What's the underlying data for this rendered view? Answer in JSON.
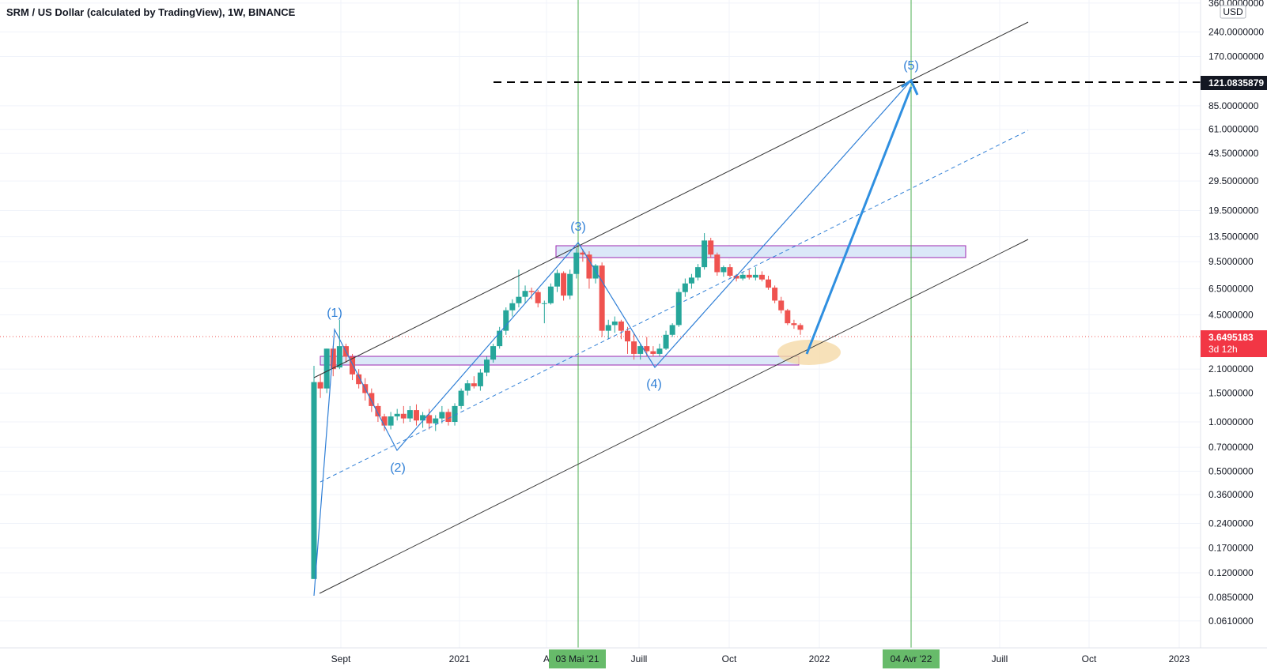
{
  "window": {
    "title": "SRM / US Dollar (calculated by TradingView), 1W, BINANCE"
  },
  "currency_badge": "USD",
  "price_axis": {
    "labels": [
      "360.0000000",
      "240.0000000",
      "170.0000000",
      "85.0000000",
      "61.0000000",
      "43.5000000",
      "29.5000000",
      "19.5000000",
      "13.5000000",
      "9.5000000",
      "6.5000000",
      "4.5000000",
      "2.1000000",
      "1.5000000",
      "1.0000000",
      "0.7000000",
      "0.5000000",
      "0.3600000",
      "0.2400000",
      "0.1700000",
      "0.1200000",
      "0.0850000",
      "0.0610000"
    ],
    "target_price": "121.0835879",
    "current_price": "3.6495183",
    "countdown": "3d 12h"
  },
  "time_axis": {
    "labels": [
      "Sept",
      "2021",
      "A",
      "Juill",
      "Oct",
      "2022",
      "Juill",
      "Oct",
      "2023"
    ],
    "highlight_1": "03 Mai '21",
    "highlight_2": "04 Avr '22"
  },
  "wave_labels": [
    "(1)",
    "(2)",
    "(3)",
    "(4)",
    "(5)"
  ],
  "colors": {
    "up": "#26a69a",
    "down": "#ef5350",
    "wave": "#2f7fd6",
    "channel": "#333333",
    "zone_fill": "#dbe8f8",
    "zone_border": "#9c27b0",
    "vertical_marker": "#4caf50",
    "ellipse": "#f5d9a8",
    "current_price_bg": "#f23645",
    "target_price_bg": "#131722"
  },
  "chart_data": {
    "type": "candlestick",
    "title": "SRM / US Dollar (calculated by TradingView), 1W, BINANCE",
    "y_scale": "log",
    "ylim": [
      0.05,
      400
    ],
    "candles": [
      {
        "o": 0.11,
        "h": 2.2,
        "l": 0.11,
        "c": 1.75
      },
      {
        "o": 1.75,
        "h": 1.95,
        "l": 1.4,
        "c": 1.6
      },
      {
        "o": 1.6,
        "h": 2.8,
        "l": 1.5,
        "c": 2.8
      },
      {
        "o": 2.8,
        "h": 2.9,
        "l": 1.9,
        "c": 2.1
      },
      {
        "o": 2.15,
        "h": 4.2,
        "l": 2.1,
        "c": 2.9
      },
      {
        "o": 2.9,
        "h": 3.0,
        "l": 2.3,
        "c": 2.5
      },
      {
        "o": 2.5,
        "h": 2.6,
        "l": 1.8,
        "c": 1.95
      },
      {
        "o": 1.95,
        "h": 2.1,
        "l": 1.6,
        "c": 1.7
      },
      {
        "o": 1.7,
        "h": 1.85,
        "l": 1.35,
        "c": 1.5
      },
      {
        "o": 1.5,
        "h": 1.6,
        "l": 1.15,
        "c": 1.25
      },
      {
        "o": 1.25,
        "h": 1.3,
        "l": 1.0,
        "c": 1.08
      },
      {
        "o": 1.08,
        "h": 1.12,
        "l": 0.88,
        "c": 0.95
      },
      {
        "o": 0.95,
        "h": 1.15,
        "l": 0.9,
        "c": 1.08
      },
      {
        "o": 1.08,
        "h": 1.2,
        "l": 1.02,
        "c": 1.12
      },
      {
        "o": 1.12,
        "h": 1.25,
        "l": 0.98,
        "c": 1.05
      },
      {
        "o": 1.05,
        "h": 1.25,
        "l": 1.0,
        "c": 1.18
      },
      {
        "o": 1.18,
        "h": 1.28,
        "l": 0.95,
        "c": 1.02
      },
      {
        "o": 1.02,
        "h": 1.15,
        "l": 0.92,
        "c": 1.1
      },
      {
        "o": 1.1,
        "h": 1.2,
        "l": 0.9,
        "c": 0.98
      },
      {
        "o": 0.98,
        "h": 1.1,
        "l": 0.88,
        "c": 1.05
      },
      {
        "o": 1.05,
        "h": 1.25,
        "l": 0.98,
        "c": 1.15
      },
      {
        "o": 1.15,
        "h": 1.2,
        "l": 0.95,
        "c": 1.0
      },
      {
        "o": 1.0,
        "h": 1.3,
        "l": 0.95,
        "c": 1.25
      },
      {
        "o": 1.25,
        "h": 1.6,
        "l": 1.2,
        "c": 1.55
      },
      {
        "o": 1.55,
        "h": 1.8,
        "l": 1.45,
        "c": 1.72
      },
      {
        "o": 1.72,
        "h": 1.9,
        "l": 1.6,
        "c": 1.65
      },
      {
        "o": 1.65,
        "h": 2.1,
        "l": 1.55,
        "c": 2.0
      },
      {
        "o": 2.0,
        "h": 2.5,
        "l": 1.9,
        "c": 2.4
      },
      {
        "o": 2.4,
        "h": 3.0,
        "l": 2.3,
        "c": 2.9
      },
      {
        "o": 2.9,
        "h": 3.8,
        "l": 2.8,
        "c": 3.6
      },
      {
        "o": 3.6,
        "h": 5.0,
        "l": 3.4,
        "c": 4.8
      },
      {
        "o": 4.8,
        "h": 5.6,
        "l": 4.4,
        "c": 5.3
      },
      {
        "o": 5.3,
        "h": 8.5,
        "l": 5.0,
        "c": 5.8
      },
      {
        "o": 5.8,
        "h": 6.8,
        "l": 5.3,
        "c": 6.3
      },
      {
        "o": 6.3,
        "h": 6.6,
        "l": 5.6,
        "c": 6.2
      },
      {
        "o": 6.2,
        "h": 6.4,
        "l": 5.0,
        "c": 5.3
      },
      {
        "o": 5.3,
        "h": 5.5,
        "l": 4.0,
        "c": 5.3
      },
      {
        "o": 5.3,
        "h": 7.0,
        "l": 5.2,
        "c": 6.7
      },
      {
        "o": 6.7,
        "h": 8.5,
        "l": 6.2,
        "c": 8.1
      },
      {
        "o": 8.1,
        "h": 8.3,
        "l": 5.5,
        "c": 5.9
      },
      {
        "o": 5.9,
        "h": 8.5,
        "l": 5.6,
        "c": 8.0
      },
      {
        "o": 8.0,
        "h": 11.5,
        "l": 7.5,
        "c": 10.8
      },
      {
        "o": 10.8,
        "h": 11.3,
        "l": 9.5,
        "c": 10.5
      },
      {
        "o": 10.5,
        "h": 11.0,
        "l": 6.5,
        "c": 7.5
      },
      {
        "o": 7.5,
        "h": 9.2,
        "l": 7.0,
        "c": 9.0
      },
      {
        "o": 9.0,
        "h": 9.4,
        "l": 3.3,
        "c": 3.6
      },
      {
        "o": 3.6,
        "h": 4.2,
        "l": 3.2,
        "c": 3.9
      },
      {
        "o": 3.9,
        "h": 4.4,
        "l": 3.5,
        "c": 4.1
      },
      {
        "o": 4.1,
        "h": 4.2,
        "l": 3.2,
        "c": 3.6
      },
      {
        "o": 3.6,
        "h": 3.8,
        "l": 2.6,
        "c": 3.1
      },
      {
        "o": 3.1,
        "h": 3.5,
        "l": 2.4,
        "c": 2.6
      },
      {
        "o": 2.6,
        "h": 3.0,
        "l": 2.4,
        "c": 2.9
      },
      {
        "o": 2.9,
        "h": 3.3,
        "l": 2.5,
        "c": 2.7
      },
      {
        "o": 2.7,
        "h": 2.9,
        "l": 2.5,
        "c": 2.6
      },
      {
        "o": 2.6,
        "h": 3.0,
        "l": 2.5,
        "c": 2.8
      },
      {
        "o": 2.8,
        "h": 3.6,
        "l": 2.75,
        "c": 3.4
      },
      {
        "o": 3.4,
        "h": 4.0,
        "l": 3.3,
        "c": 3.9
      },
      {
        "o": 3.9,
        "h": 6.5,
        "l": 3.8,
        "c": 6.2
      },
      {
        "o": 6.2,
        "h": 7.5,
        "l": 5.8,
        "c": 7.0
      },
      {
        "o": 7.0,
        "h": 8.0,
        "l": 6.5,
        "c": 7.6
      },
      {
        "o": 7.6,
        "h": 9.2,
        "l": 7.3,
        "c": 8.8
      },
      {
        "o": 8.8,
        "h": 14.2,
        "l": 8.5,
        "c": 12.8
      },
      {
        "o": 12.8,
        "h": 13.3,
        "l": 10.0,
        "c": 10.5
      },
      {
        "o": 10.5,
        "h": 10.8,
        "l": 7.8,
        "c": 8.2
      },
      {
        "o": 8.2,
        "h": 9.0,
        "l": 7.7,
        "c": 8.8
      },
      {
        "o": 8.8,
        "h": 9.2,
        "l": 7.6,
        "c": 7.8
      },
      {
        "o": 7.8,
        "h": 8.0,
        "l": 7.2,
        "c": 7.5
      },
      {
        "o": 7.5,
        "h": 8.2,
        "l": 7.3,
        "c": 7.9
      },
      {
        "o": 7.9,
        "h": 8.5,
        "l": 7.4,
        "c": 7.6
      },
      {
        "o": 7.6,
        "h": 8.8,
        "l": 7.3,
        "c": 7.9
      },
      {
        "o": 7.9,
        "h": 8.3,
        "l": 7.2,
        "c": 7.4
      },
      {
        "o": 7.4,
        "h": 7.8,
        "l": 6.4,
        "c": 6.6
      },
      {
        "o": 6.6,
        "h": 6.8,
        "l": 5.3,
        "c": 5.5
      },
      {
        "o": 5.5,
        "h": 5.8,
        "l": 4.6,
        "c": 4.8
      },
      {
        "o": 4.8,
        "h": 4.9,
        "l": 3.9,
        "c": 4.0
      },
      {
        "o": 4.0,
        "h": 4.2,
        "l": 3.7,
        "c": 3.9
      },
      {
        "o": 3.9,
        "h": 4.0,
        "l": 3.4,
        "c": 3.65
      }
    ]
  }
}
